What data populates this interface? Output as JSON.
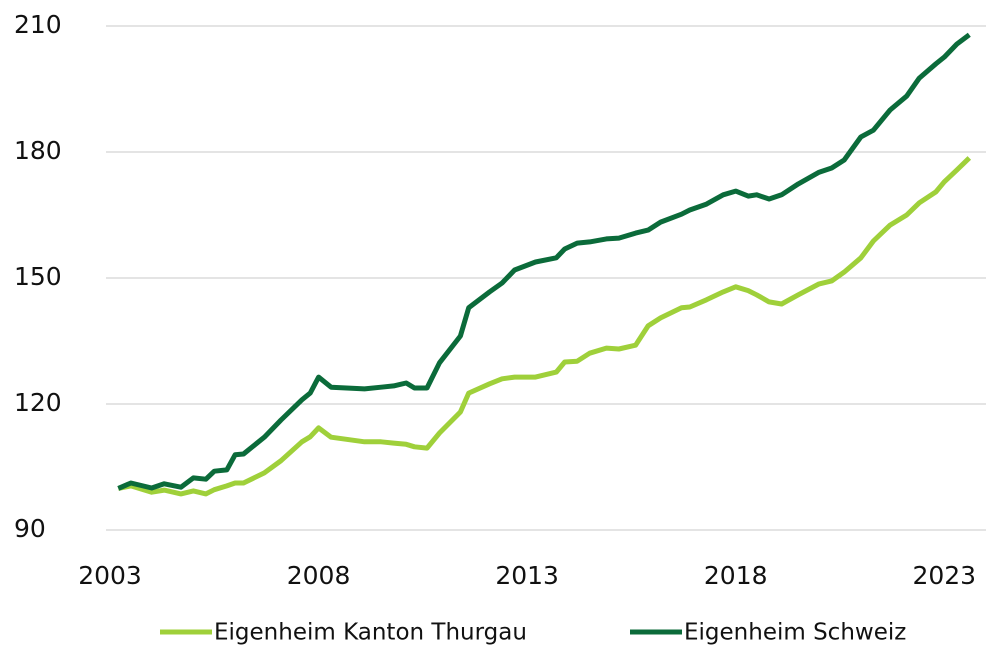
{
  "chart_data": {
    "type": "line",
    "x": [
      2003.2,
      2003.5,
      2004.0,
      2004.3,
      2004.7,
      2005.0,
      2005.3,
      2005.5,
      2005.8,
      2006.0,
      2006.2,
      2006.7,
      2007.1,
      2007.6,
      2007.8,
      2008.0,
      2008.3,
      2009.1,
      2009.5,
      2009.8,
      2010.1,
      2010.3,
      2010.6,
      2010.9,
      2011.4,
      2011.6,
      2012.1,
      2012.4,
      2012.7,
      2013.2,
      2013.7,
      2013.9,
      2014.2,
      2014.5,
      2014.9,
      2015.2,
      2015.6,
      2015.9,
      2016.2,
      2016.7,
      2016.9,
      2017.3,
      2017.7,
      2018.0,
      2018.3,
      2018.5,
      2018.8,
      2019.1,
      2019.5,
      2020.0,
      2020.3,
      2020.6,
      2021.0,
      2021.3,
      2021.7,
      2022.1,
      2022.4,
      2022.8,
      2023.0,
      2023.3,
      2023.6
    ],
    "series": [
      {
        "name": "Eigenheim Kanton Thurgau",
        "color": "#9fd03a",
        "values": [
          99.9,
          100.5,
          99,
          99.5,
          98.6,
          99.3,
          98.6,
          99.6,
          100.5,
          101.2,
          101.2,
          103.6,
          106.5,
          111,
          112.2,
          114.3,
          112.1,
          111,
          111,
          110.7,
          110.4,
          109.8,
          109.5,
          113.1,
          118.1,
          122.6,
          124.8,
          126,
          126.4,
          126.4,
          127.6,
          130,
          130.2,
          132.1,
          133.3,
          133.1,
          134,
          138.6,
          140.5,
          142.9,
          143.1,
          144.8,
          146.7,
          147.9,
          147,
          146,
          144.3,
          143.8,
          146,
          148.6,
          149.3,
          151.4,
          154.8,
          158.8,
          162.6,
          165,
          167.9,
          170.5,
          172.9,
          175.7,
          178.6
        ]
      },
      {
        "name": "Eigenheim Schweiz",
        "color": "#0b6b3a",
        "values": [
          99.9,
          101.2,
          100,
          101,
          100.2,
          102.4,
          102.1,
          104,
          104.3,
          107.9,
          108.1,
          112.1,
          116.2,
          121,
          122.6,
          126.4,
          124,
          123.6,
          124,
          124.3,
          125,
          123.8,
          123.8,
          129.8,
          136.2,
          142.9,
          146.7,
          148.8,
          151.9,
          153.8,
          154.8,
          156.9,
          158.3,
          158.6,
          159.3,
          159.5,
          160.7,
          161.4,
          163.3,
          165.2,
          166.2,
          167.6,
          169.8,
          170.7,
          169.5,
          169.8,
          168.8,
          169.8,
          172.4,
          175.2,
          176.2,
          178.1,
          183.6,
          185.2,
          190,
          193.3,
          197.6,
          201,
          202.6,
          205.7,
          207.9
        ]
      }
    ],
    "xlim": [
      2003,
      2024
    ],
    "xticks": [
      2003,
      2008,
      2013,
      2018,
      2023
    ],
    "ylim": [
      90,
      210
    ],
    "yticks": [
      90,
      120,
      150,
      180,
      210
    ],
    "grid": true
  }
}
